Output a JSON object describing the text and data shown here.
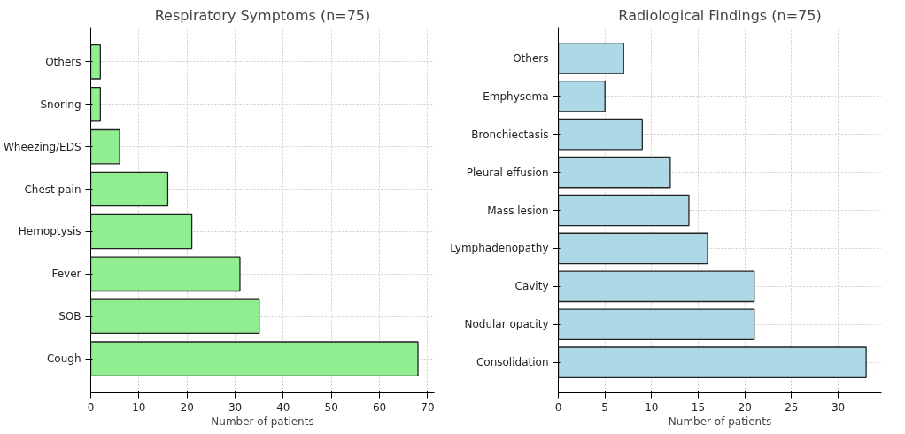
{
  "chart_data": [
    {
      "type": "bar",
      "orientation": "horizontal",
      "title": "Respiratory Symptoms (n=75)",
      "xlabel": "Number of patients",
      "categories": [
        "Others",
        "Snoring",
        "Wheezing/EDS",
        "Chest pain",
        "Hemoptysis",
        "Fever",
        "SOB",
        "Cough"
      ],
      "values": [
        2,
        2,
        6,
        16,
        21,
        31,
        35,
        68
      ],
      "color": "#90ee90",
      "xlim": [
        0,
        71.4
      ],
      "xticks": [
        0,
        10,
        20,
        30,
        40,
        50,
        60,
        70
      ],
      "grid": true
    },
    {
      "type": "bar",
      "orientation": "horizontal",
      "title": "Radiological Findings (n=75)",
      "xlabel": "Number of patients",
      "categories": [
        "Others",
        "Emphysema",
        "Bronchiectasis",
        "Pleural effusion",
        "Mass lesion",
        "Lymphadenopathy",
        "Cavity",
        "Nodular opacity",
        "Consolidation"
      ],
      "values": [
        7,
        5,
        9,
        12,
        14,
        16,
        21,
        21,
        33
      ],
      "color": "#add8e6",
      "xlim": [
        0,
        34.65
      ],
      "xticks": [
        0,
        5,
        10,
        15,
        20,
        25,
        30
      ],
      "grid": true
    }
  ]
}
